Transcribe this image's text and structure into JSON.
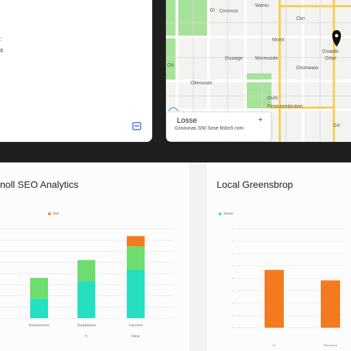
{
  "top_left": {
    "lines": [
      ":",
      "s"
    ]
  },
  "map": {
    "labels": [
      "Gl",
      "Cmsmuc",
      "Wamu",
      "Ousiage",
      "Wmmusde",
      "Ou",
      "Olienusan",
      "Gnawbi",
      "Orlwr",
      "Flmsuonnbrutwn",
      "Grt",
      "Cbn",
      "Mnmt",
      "Oromwaia",
      "Ouhr"
    ],
    "popup": {
      "title": "Losse",
      "close_symbol": "+",
      "subtitle": "Gssounas S50 Sose Bsbs5 com"
    }
  },
  "panels": {
    "left": {
      "title": "noll SEO Analytics",
      "legend_label": "Sed"
    },
    "right": {
      "title": "Local Greensbrop",
      "legend_label": "Sesee"
    }
  },
  "colors": {
    "teal": "#24e0c0",
    "green": "#6fdc6f",
    "orange": "#f47a1f",
    "accent_blue": "#2f6bd8",
    "park_green": "#a7e29a",
    "road_yellow": "#f6cc4a"
  },
  "chart_data": [
    {
      "type": "bar",
      "stacked": true,
      "categories": [
        "Aoosasoseos",
        "Goqqiaasea",
        "Caoomm"
      ],
      "secondary_labels": [
        "",
        "5",
        "Daop"
      ],
      "series": [
        {
          "name": "",
          "color": "#24e0c0",
          "values": [
            38,
            72,
            95
          ]
        },
        {
          "name": "",
          "color": "#6fdc6f",
          "values": [
            41,
            42,
            46
          ]
        },
        {
          "name": "Sed",
          "color": "#f47a1f",
          "values": [
            0,
            0,
            20
          ]
        }
      ],
      "ylim": [
        0,
        175
      ],
      "grid": true,
      "legend": "top-left"
    },
    {
      "type": "bar",
      "categories": [
        "",
        ""
      ],
      "secondary_labels": [
        "Ix",
        "Osswnss"
      ],
      "series": [
        {
          "name": "Sesee",
          "color": "#f47a1f",
          "values": [
            82,
            67
          ]
        }
      ],
      "ylim": [
        0,
        140
      ],
      "grid": true,
      "legend": "top-left"
    }
  ]
}
